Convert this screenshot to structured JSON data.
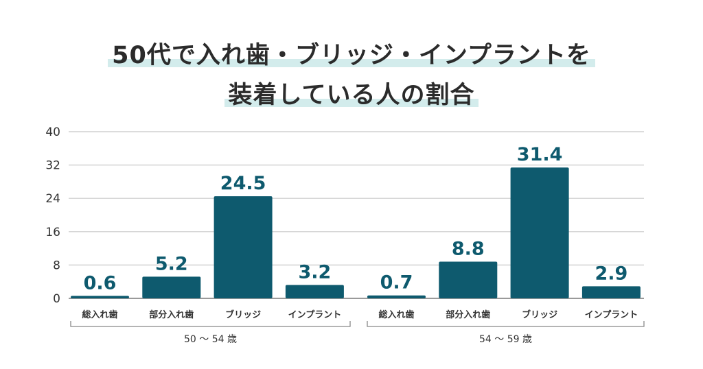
{
  "chart_data": {
    "type": "bar",
    "title_lines": [
      "50代で入れ歯・ブリッジ・インプラントを",
      "装着している人の割合"
    ],
    "xlabel": "",
    "ylabel": "",
    "ylim": [
      0,
      40
    ],
    "yticks": [
      0,
      8,
      16,
      24,
      32,
      40
    ],
    "grid": true,
    "bar_color": "#0e5a6e",
    "groups": [
      {
        "label": "50 ～ 54 歳",
        "categories": [
          "総入れ歯",
          "部分入れ歯",
          "ブリッジ",
          "インプラント"
        ],
        "values": [
          0.6,
          5.2,
          24.5,
          3.2
        ]
      },
      {
        "label": "54 ～ 59 歳",
        "categories": [
          "総入れ歯",
          "部分入れ歯",
          "ブリッジ",
          "インプラント"
        ],
        "values": [
          0.7,
          8.8,
          31.4,
          2.9
        ]
      }
    ]
  }
}
